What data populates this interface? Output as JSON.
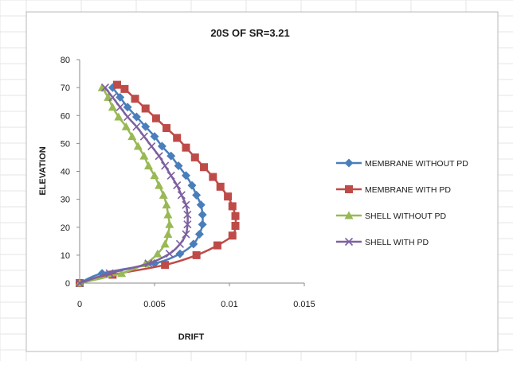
{
  "chart_data": {
    "type": "line",
    "title": "20S OF SR=3.21",
    "xlabel": "DRIFT",
    "ylabel": "ELEVATION",
    "xlim": [
      0,
      0.015
    ],
    "ylim": [
      0,
      80
    ],
    "x_ticks": [
      {
        "value": 0,
        "label": "0"
      },
      {
        "value": 0.005,
        "label": "0.005"
      },
      {
        "value": 0.01,
        "label": "0.01"
      },
      {
        "value": 0.015,
        "label": "0.015"
      }
    ],
    "y_ticks": [
      {
        "value": 0,
        "label": "0"
      },
      {
        "value": 10,
        "label": "10"
      },
      {
        "value": 20,
        "label": "20"
      },
      {
        "value": 30,
        "label": "30"
      },
      {
        "value": 40,
        "label": "40"
      },
      {
        "value": 50,
        "label": "50"
      },
      {
        "value": 60,
        "label": "60"
      },
      {
        "value": 70,
        "label": "70"
      },
      {
        "value": 80,
        "label": "80"
      }
    ],
    "grid": false,
    "legend_position": "right",
    "series": [
      {
        "name": "MEMBRANE WITHOUT PD",
        "color": "#4a7ebb",
        "marker": "diamond",
        "points": [
          [
            0,
            0
          ],
          [
            0.0015,
            3.5
          ],
          [
            0.005,
            7
          ],
          [
            0.0067,
            10.5
          ],
          [
            0.0076,
            14
          ],
          [
            0.008,
            17.5
          ],
          [
            0.0082,
            21
          ],
          [
            0.0082,
            24.5
          ],
          [
            0.0081,
            28
          ],
          [
            0.0078,
            31.5
          ],
          [
            0.0075,
            35
          ],
          [
            0.0071,
            38.5
          ],
          [
            0.0066,
            42
          ],
          [
            0.0061,
            45.5
          ],
          [
            0.0055,
            49
          ],
          [
            0.005,
            52.5
          ],
          [
            0.0044,
            56
          ],
          [
            0.0038,
            59.5
          ],
          [
            0.0032,
            63
          ],
          [
            0.0027,
            66.5
          ],
          [
            0.0022,
            70
          ]
        ]
      },
      {
        "name": "MEMBRANE WITH PD",
        "color": "#be4b48",
        "marker": "square",
        "points": [
          [
            0,
            0
          ],
          [
            0.0022,
            3
          ],
          [
            0.0057,
            6.5
          ],
          [
            0.0078,
            10
          ],
          [
            0.0092,
            13.5
          ],
          [
            0.0102,
            17
          ],
          [
            0.0104,
            20.5
          ],
          [
            0.0104,
            24
          ],
          [
            0.0102,
            27.5
          ],
          [
            0.0099,
            31
          ],
          [
            0.0094,
            34.5
          ],
          [
            0.0089,
            38
          ],
          [
            0.0083,
            41.5
          ],
          [
            0.0077,
            45
          ],
          [
            0.0071,
            48.5
          ],
          [
            0.0065,
            52
          ],
          [
            0.0058,
            55.5
          ],
          [
            0.0051,
            59
          ],
          [
            0.0044,
            62.5
          ],
          [
            0.0037,
            66
          ],
          [
            0.003,
            69.5
          ],
          [
            0.0025,
            71
          ]
        ]
      },
      {
        "name": "SHELL WITHOUT PD",
        "color": "#98b954",
        "marker": "triangle",
        "points": [
          [
            0,
            0
          ],
          [
            0.0028,
            3.5
          ],
          [
            0.0044,
            7
          ],
          [
            0.0052,
            10.5
          ],
          [
            0.0057,
            14
          ],
          [
            0.0059,
            17.5
          ],
          [
            0.006,
            21
          ],
          [
            0.0059,
            24.5
          ],
          [
            0.0058,
            28
          ],
          [
            0.0056,
            31.5
          ],
          [
            0.0053,
            35
          ],
          [
            0.005,
            38.5
          ],
          [
            0.0046,
            42
          ],
          [
            0.0043,
            45.5
          ],
          [
            0.0039,
            49
          ],
          [
            0.0035,
            52.5
          ],
          [
            0.0031,
            56
          ],
          [
            0.0026,
            59.5
          ],
          [
            0.0022,
            63
          ],
          [
            0.0019,
            66.5
          ],
          [
            0.0015,
            70
          ]
        ]
      },
      {
        "name": "SHELL WITH PD",
        "color": "#7d60a0",
        "marker": "x",
        "points": [
          [
            0,
            0
          ],
          [
            0.002,
            3.5
          ],
          [
            0.0046,
            7
          ],
          [
            0.006,
            10.5
          ],
          [
            0.0067,
            14
          ],
          [
            0.0071,
            17.5
          ],
          [
            0.0072,
            21
          ],
          [
            0.0072,
            24.5
          ],
          [
            0.0071,
            28
          ],
          [
            0.0068,
            31.5
          ],
          [
            0.0065,
            35
          ],
          [
            0.0061,
            38.5
          ],
          [
            0.0057,
            42
          ],
          [
            0.0053,
            45.5
          ],
          [
            0.0048,
            49
          ],
          [
            0.0043,
            52.5
          ],
          [
            0.0038,
            56
          ],
          [
            0.0032,
            59.5
          ],
          [
            0.0027,
            63
          ],
          [
            0.0022,
            66.5
          ],
          [
            0.0017,
            70
          ]
        ]
      }
    ]
  }
}
